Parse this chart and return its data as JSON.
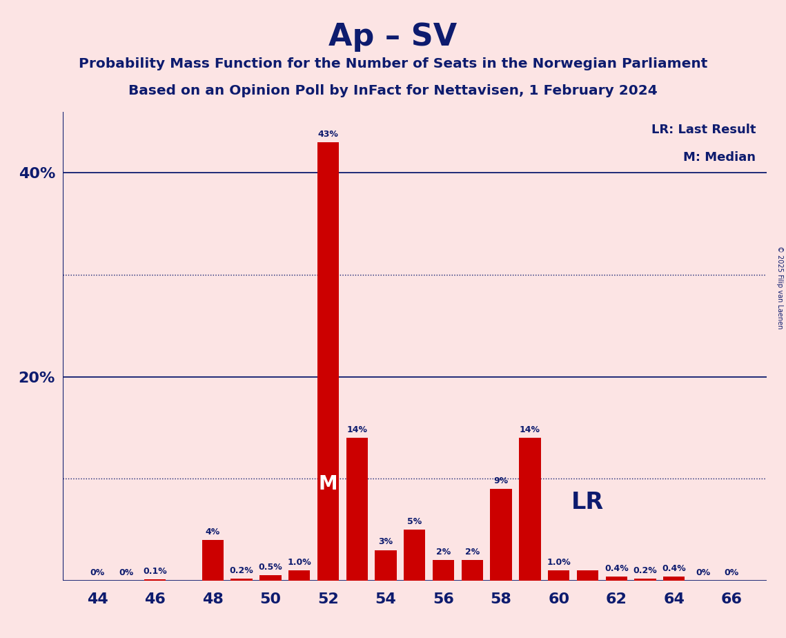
{
  "title": "Ap – SV",
  "subtitle1": "Probability Mass Function for the Number of Seats in the Norwegian Parliament",
  "subtitle2": "Based on an Opinion Poll by InFact for Nettavisen, 1 February 2024",
  "copyright": "© 2025 Filip van Laenen",
  "legend_lr": "LR: Last Result",
  "legend_m": "M: Median",
  "background_color": "#fce4e4",
  "bar_color": "#cc0000",
  "axis_color": "#0d1b6e",
  "text_color": "#0d1b6e",
  "seats": [
    44,
    45,
    46,
    47,
    48,
    49,
    50,
    51,
    52,
    53,
    54,
    55,
    56,
    57,
    58,
    59,
    60,
    61,
    62,
    63,
    64,
    65,
    66
  ],
  "probs": [
    0.0,
    0.0,
    0.1,
    0.0,
    4.0,
    0.2,
    0.5,
    1.0,
    43.0,
    14.0,
    3.0,
    5.0,
    2.0,
    2.0,
    9.0,
    14.0,
    1.0,
    1.0,
    0.4,
    0.2,
    0.4,
    0.0,
    0.0
  ],
  "labels": [
    "0%",
    "0%",
    "0.1%",
    "",
    "4%",
    "0.2%",
    "0.5%",
    "1.0%",
    "43%",
    "14%",
    "3%",
    "5%",
    "2%",
    "2%",
    "9%",
    "14%",
    "1.0%",
    "",
    "0.4%",
    "0.2%",
    "0.4%",
    "0%",
    "0%"
  ],
  "xtick_seats": [
    44,
    46,
    48,
    50,
    52,
    54,
    56,
    58,
    60,
    62,
    64,
    66
  ],
  "ysolid": [
    0,
    20,
    40
  ],
  "ydotted": [
    10,
    30
  ],
  "ylim": [
    0,
    46
  ],
  "median_seat": 52,
  "lr_seat": 59,
  "bar_width": 0.75
}
